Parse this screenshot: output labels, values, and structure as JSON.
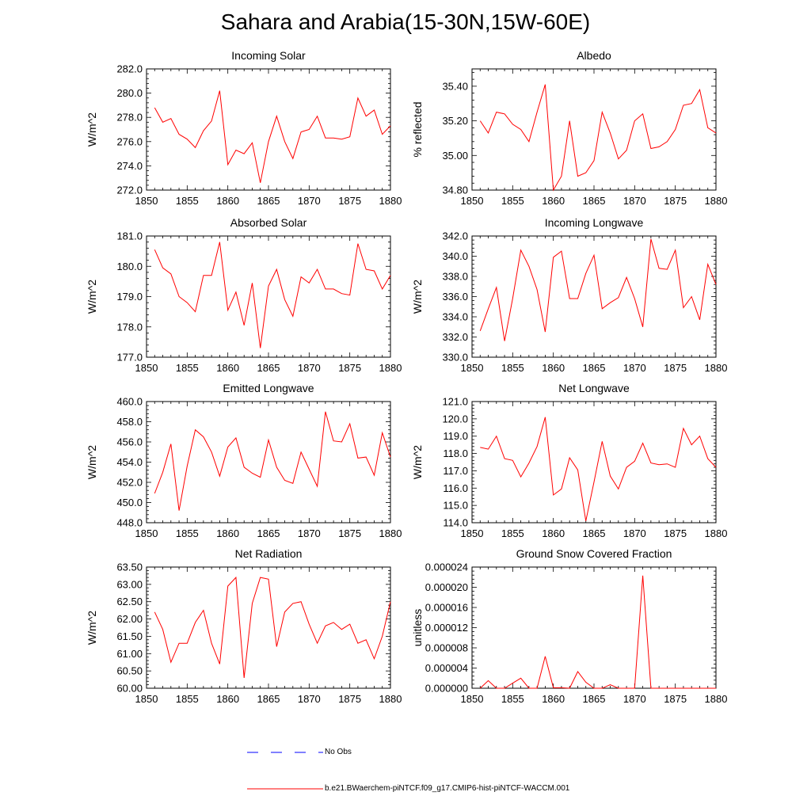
{
  "figure": {
    "title": "Sahara and Arabia(15-30N,15W-60E)",
    "colors": {
      "model": "#ff0000",
      "obs": "#0000ff"
    },
    "legend": {
      "obs_label": "No Obs",
      "model_label": "b.e21.BWaerchem-piNTCF.f09_g17.CMIP6-hist-piNTCF-WACCM.001"
    }
  },
  "chart_data": [
    {
      "type": "line",
      "title": "Incoming Solar",
      "xlabel": "",
      "ylabel": "W/m^2",
      "xlim": [
        1850,
        1880
      ],
      "ylim": [
        272,
        282
      ],
      "x_ticks": [
        "1850",
        "1855",
        "1860",
        "1865",
        "1870",
        "1875",
        "1880"
      ],
      "y_ticks": [
        "272.0",
        "274.0",
        "276.0",
        "278.0",
        "280.0",
        "282.0"
      ],
      "x": [
        1851,
        1852,
        1853,
        1854,
        1855,
        1856,
        1857,
        1858,
        1859,
        1860,
        1861,
        1862,
        1863,
        1864,
        1865,
        1866,
        1867,
        1868,
        1869,
        1870,
        1871,
        1872,
        1873,
        1874,
        1875,
        1876,
        1877,
        1878,
        1879,
        1880
      ],
      "series": [
        {
          "values": [
            278.8,
            277.6,
            277.9,
            276.6,
            276.2,
            275.5,
            276.9,
            277.7,
            280.2,
            274.1,
            275.3,
            275.0,
            275.9,
            272.6,
            276.0,
            278.1,
            276.0,
            274.6,
            276.8,
            277.0,
            278.1,
            276.3,
            276.3,
            276.2,
            276.4,
            279.6,
            278.1,
            278.6,
            276.6,
            277.3
          ]
        }
      ]
    },
    {
      "type": "line",
      "title": "Albedo",
      "xlabel": "",
      "ylabel": "% reflected",
      "xlim": [
        1850,
        1880
      ],
      "ylim": [
        34.8,
        35.5
      ],
      "x_ticks": [
        "1850",
        "1855",
        "1860",
        "1865",
        "1870",
        "1875",
        "1880"
      ],
      "y_ticks": [
        "34.80",
        "35.00",
        "35.20",
        "35.40"
      ],
      "x": [
        1851,
        1852,
        1853,
        1854,
        1855,
        1856,
        1857,
        1858,
        1859,
        1860,
        1861,
        1862,
        1863,
        1864,
        1865,
        1866,
        1867,
        1868,
        1869,
        1870,
        1871,
        1872,
        1873,
        1874,
        1875,
        1876,
        1877,
        1878,
        1879,
        1880
      ],
      "series": [
        {
          "values": [
            35.2,
            35.13,
            35.25,
            35.24,
            35.18,
            35.15,
            35.08,
            35.25,
            35.41,
            34.8,
            34.88,
            35.2,
            34.88,
            34.9,
            34.97,
            35.25,
            35.13,
            34.98,
            35.03,
            35.2,
            35.24,
            35.04,
            35.05,
            35.08,
            35.15,
            35.29,
            35.3,
            35.38,
            35.16,
            35.13
          ]
        }
      ]
    },
    {
      "type": "line",
      "title": "Absorbed Solar",
      "xlabel": "",
      "ylabel": "W/m^2",
      "xlim": [
        1850,
        1880
      ],
      "ylim": [
        177,
        181
      ],
      "x_ticks": [
        "1850",
        "1855",
        "1860",
        "1865",
        "1870",
        "1875",
        "1880"
      ],
      "y_ticks": [
        "177.0",
        "178.0",
        "179.0",
        "180.0",
        "181.0"
      ],
      "x": [
        1851,
        1852,
        1853,
        1854,
        1855,
        1856,
        1857,
        1858,
        1859,
        1860,
        1861,
        1862,
        1863,
        1864,
        1865,
        1866,
        1867,
        1868,
        1869,
        1870,
        1871,
        1872,
        1873,
        1874,
        1875,
        1876,
        1877,
        1878,
        1879,
        1880
      ],
      "series": [
        {
          "values": [
            180.55,
            179.95,
            179.75,
            179.0,
            178.8,
            178.5,
            179.7,
            179.7,
            180.8,
            178.55,
            179.15,
            178.05,
            179.45,
            177.3,
            179.35,
            179.9,
            178.9,
            178.35,
            179.65,
            179.45,
            179.9,
            179.25,
            179.25,
            179.1,
            179.05,
            180.75,
            179.9,
            179.85,
            179.25,
            179.7
          ]
        }
      ]
    },
    {
      "type": "line",
      "title": "Incoming Longwave",
      "xlabel": "",
      "ylabel": "W/m^2",
      "xlim": [
        1850,
        1880
      ],
      "ylim": [
        330,
        342
      ],
      "x_ticks": [
        "1850",
        "1855",
        "1860",
        "1865",
        "1870",
        "1875",
        "1880"
      ],
      "y_ticks": [
        "330.0",
        "332.0",
        "334.0",
        "336.0",
        "338.0",
        "340.0",
        "342.0"
      ],
      "x": [
        1851,
        1852,
        1853,
        1854,
        1855,
        1856,
        1857,
        1858,
        1859,
        1860,
        1861,
        1862,
        1863,
        1864,
        1865,
        1866,
        1867,
        1868,
        1869,
        1870,
        1871,
        1872,
        1873,
        1874,
        1875,
        1876,
        1877,
        1878,
        1879,
        1880
      ],
      "series": [
        {
          "values": [
            332.6,
            334.8,
            336.9,
            331.6,
            335.8,
            340.6,
            339.0,
            336.7,
            332.5,
            339.9,
            340.5,
            335.8,
            335.8,
            338.3,
            340.1,
            334.8,
            335.4,
            335.9,
            337.9,
            335.8,
            333.0,
            341.7,
            338.8,
            338.7,
            340.6,
            334.9,
            336.0,
            333.7,
            339.2,
            337.2
          ]
        }
      ]
    },
    {
      "type": "line",
      "title": "Emitted Longwave",
      "xlabel": "",
      "ylabel": "W/m^2",
      "xlim": [
        1850,
        1880
      ],
      "ylim": [
        448,
        460
      ],
      "x_ticks": [
        "1850",
        "1855",
        "1860",
        "1865",
        "1870",
        "1875",
        "1880"
      ],
      "y_ticks": [
        "448.0",
        "450.0",
        "452.0",
        "454.0",
        "456.0",
        "458.0",
        "460.0"
      ],
      "x": [
        1851,
        1852,
        1853,
        1854,
        1855,
        1856,
        1857,
        1858,
        1859,
        1860,
        1861,
        1862,
        1863,
        1864,
        1865,
        1866,
        1867,
        1868,
        1869,
        1870,
        1871,
        1872,
        1873,
        1874,
        1875,
        1876,
        1877,
        1878,
        1879,
        1880
      ],
      "series": [
        {
          "values": [
            450.9,
            453.0,
            455.8,
            449.2,
            453.6,
            457.2,
            456.5,
            455.0,
            452.6,
            455.5,
            456.4,
            453.5,
            452.9,
            452.5,
            456.2,
            453.5,
            452.2,
            451.9,
            455.0,
            453.3,
            451.6,
            459.0,
            456.1,
            456.0,
            457.8,
            454.4,
            454.5,
            452.7,
            456.9,
            454.5
          ]
        }
      ]
    },
    {
      "type": "line",
      "title": "Net Longwave",
      "xlabel": "",
      "ylabel": "W/m^2",
      "xlim": [
        1850,
        1880
      ],
      "ylim": [
        114,
        121
      ],
      "x_ticks": [
        "1850",
        "1855",
        "1860",
        "1865",
        "1870",
        "1875",
        "1880"
      ],
      "y_ticks": [
        "114.0",
        "115.0",
        "116.0",
        "117.0",
        "118.0",
        "119.0",
        "120.0",
        "121.0"
      ],
      "x": [
        1851,
        1852,
        1853,
        1854,
        1855,
        1856,
        1857,
        1858,
        1859,
        1860,
        1861,
        1862,
        1863,
        1864,
        1865,
        1866,
        1867,
        1868,
        1869,
        1870,
        1871,
        1872,
        1873,
        1874,
        1875,
        1876,
        1877,
        1878,
        1879,
        1880
      ],
      "series": [
        {
          "values": [
            118.35,
            118.25,
            119.0,
            117.7,
            117.6,
            116.65,
            117.45,
            118.4,
            120.1,
            115.6,
            115.95,
            117.75,
            117.05,
            114.1,
            116.35,
            118.7,
            116.7,
            115.95,
            117.2,
            117.55,
            118.6,
            117.45,
            117.35,
            117.4,
            117.2,
            119.45,
            118.5,
            119.0,
            117.7,
            117.2
          ]
        }
      ]
    },
    {
      "type": "line",
      "title": "Net Radiation",
      "xlabel": "",
      "ylabel": "W/m^2",
      "xlim": [
        1850,
        1880
      ],
      "ylim": [
        60,
        63.5
      ],
      "x_ticks": [
        "1850",
        "1855",
        "1860",
        "1865",
        "1870",
        "1875",
        "1880"
      ],
      "y_ticks": [
        "60.00",
        "60.50",
        "61.00",
        "61.50",
        "62.00",
        "62.50",
        "63.00",
        "63.50"
      ],
      "x": [
        1851,
        1852,
        1853,
        1854,
        1855,
        1856,
        1857,
        1858,
        1859,
        1860,
        1861,
        1862,
        1863,
        1864,
        1865,
        1866,
        1867,
        1868,
        1869,
        1870,
        1871,
        1872,
        1873,
        1874,
        1875,
        1876,
        1877,
        1878,
        1879,
        1880
      ],
      "series": [
        {
          "values": [
            62.2,
            61.7,
            60.75,
            61.3,
            61.3,
            61.9,
            62.25,
            61.3,
            60.7,
            62.95,
            63.2,
            60.3,
            62.45,
            63.2,
            63.15,
            61.2,
            62.2,
            62.45,
            62.5,
            61.85,
            61.3,
            61.8,
            61.9,
            61.7,
            61.85,
            61.3,
            61.4,
            60.85,
            61.5,
            62.5
          ]
        }
      ]
    },
    {
      "type": "line",
      "title": "Ground Snow Covered Fraction",
      "xlabel": "",
      "ylabel": "unitless",
      "xlim": [
        1850,
        1880
      ],
      "ylim": [
        0,
        2.4e-05
      ],
      "x_ticks": [
        "1850",
        "1855",
        "1860",
        "1865",
        "1870",
        "1875",
        "1880"
      ],
      "y_ticks": [
        "0.000000",
        "0.000004",
        "0.000008",
        "0.000012",
        "0.000016",
        "0.000020",
        "0.000024"
      ],
      "x": [
        1851,
        1852,
        1853,
        1854,
        1855,
        1856,
        1857,
        1858,
        1859,
        1860,
        1861,
        1862,
        1863,
        1864,
        1865,
        1866,
        1867,
        1868,
        1869,
        1870,
        1871,
        1872,
        1873,
        1874,
        1875,
        1876,
        1877,
        1878,
        1879,
        1880
      ],
      "series": [
        {
          "values": [
            0,
            1.5e-06,
            0,
            0,
            1e-06,
            2e-06,
            0,
            0,
            6.3e-06,
            1e-07,
            1e-07,
            0,
            3.3e-06,
            1.2e-06,
            0,
            0,
            7e-07,
            0,
            0,
            0,
            2.23e-05,
            0,
            0,
            0,
            0,
            0,
            0,
            0,
            0,
            0
          ]
        }
      ]
    }
  ]
}
